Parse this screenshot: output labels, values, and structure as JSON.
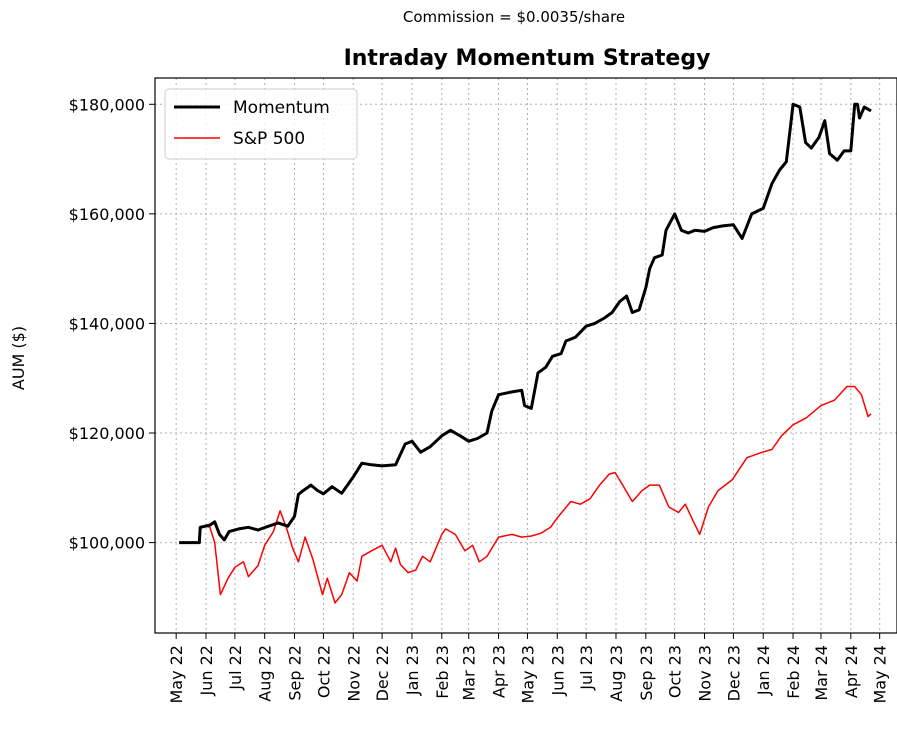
{
  "chart_data": {
    "type": "line",
    "supertitle": "Commission = $0.0035/share",
    "title": "Intraday Momentum Strategy",
    "xlabel": "",
    "ylabel": "AUM ($)",
    "y_ticks": [
      100000,
      120000,
      140000,
      160000,
      180000
    ],
    "y_tick_labels": [
      "$100,000",
      "$120,000",
      "$140,000",
      "$160,000",
      "$180,000"
    ],
    "ylim": [
      83500,
      184800
    ],
    "x_ticks": [
      "2022-05-01",
      "2022-06-01",
      "2022-07-01",
      "2022-08-01",
      "2022-09-01",
      "2022-10-01",
      "2022-11-01",
      "2022-12-01",
      "2023-01-01",
      "2023-02-01",
      "2023-03-01",
      "2023-04-01",
      "2023-05-01",
      "2023-06-01",
      "2023-07-01",
      "2023-08-01",
      "2023-09-01",
      "2023-10-01",
      "2023-11-01",
      "2023-12-01",
      "2024-01-01",
      "2024-02-01",
      "2024-03-01",
      "2024-04-01",
      "2024-05-01"
    ],
    "x_tick_labels": [
      "May 22",
      "Jun 22",
      "Jul 22",
      "Aug 22",
      "Sep 22",
      "Oct 22",
      "Nov 22",
      "Dec 22",
      "Jan 23",
      "Feb 23",
      "Mar 23",
      "Apr 23",
      "May 23",
      "Jun 23",
      "Jul 23",
      "Aug 23",
      "Sep 23",
      "Oct 23",
      "Nov 23",
      "Dec 23",
      "Jan 24",
      "Feb 24",
      "Mar 24",
      "Apr 24",
      "May 24"
    ],
    "xlim": [
      "2022-04-09",
      "2024-05-19"
    ],
    "grid": true,
    "legend_position": "top-left",
    "series": [
      {
        "name": "Momentum",
        "color": "#000000",
        "points": [
          [
            "2022-05-04",
            100000
          ],
          [
            "2022-05-25",
            100000
          ],
          [
            "2022-05-26",
            102800
          ],
          [
            "2022-06-05",
            103200
          ],
          [
            "2022-06-10",
            103800
          ],
          [
            "2022-06-15",
            101500
          ],
          [
            "2022-06-20",
            100500
          ],
          [
            "2022-06-25",
            102000
          ],
          [
            "2022-07-05",
            102500
          ],
          [
            "2022-07-15",
            102800
          ],
          [
            "2022-07-25",
            102300
          ],
          [
            "2022-08-05",
            103000
          ],
          [
            "2022-08-15",
            103600
          ],
          [
            "2022-08-25",
            103000
          ],
          [
            "2022-09-01",
            104800
          ],
          [
            "2022-09-05",
            108800
          ],
          [
            "2022-09-10",
            109500
          ],
          [
            "2022-09-18",
            110500
          ],
          [
            "2022-09-25",
            109500
          ],
          [
            "2022-10-01",
            108900
          ],
          [
            "2022-10-10",
            110200
          ],
          [
            "2022-10-20",
            109000
          ],
          [
            "2022-11-01",
            112000
          ],
          [
            "2022-11-10",
            114500
          ],
          [
            "2022-11-20",
            114200
          ],
          [
            "2022-12-01",
            114000
          ],
          [
            "2022-12-15",
            114200
          ],
          [
            "2022-12-25",
            118000
          ],
          [
            "2023-01-01",
            118500
          ],
          [
            "2023-01-10",
            116500
          ],
          [
            "2023-01-20",
            117500
          ],
          [
            "2023-02-01",
            119500
          ],
          [
            "2023-02-10",
            120500
          ],
          [
            "2023-02-20",
            119500
          ],
          [
            "2023-03-01",
            118500
          ],
          [
            "2023-03-10",
            119000
          ],
          [
            "2023-03-20",
            120000
          ],
          [
            "2023-03-25",
            124000
          ],
          [
            "2023-04-01",
            127000
          ],
          [
            "2023-04-15",
            127500
          ],
          [
            "2023-04-25",
            127800
          ],
          [
            "2023-04-28",
            125000
          ],
          [
            "2023-05-05",
            124500
          ],
          [
            "2023-05-12",
            131000
          ],
          [
            "2023-05-20",
            132000
          ],
          [
            "2023-05-27",
            134000
          ],
          [
            "2023-06-05",
            134500
          ],
          [
            "2023-06-10",
            136800
          ],
          [
            "2023-06-20",
            137500
          ],
          [
            "2023-07-01",
            139500
          ],
          [
            "2023-07-10",
            140000
          ],
          [
            "2023-07-20",
            141000
          ],
          [
            "2023-07-28",
            142000
          ],
          [
            "2023-08-05",
            144000
          ],
          [
            "2023-08-12",
            145000
          ],
          [
            "2023-08-18",
            142000
          ],
          [
            "2023-08-25",
            142500
          ],
          [
            "2023-09-01",
            146500
          ],
          [
            "2023-09-05",
            150000
          ],
          [
            "2023-09-10",
            152000
          ],
          [
            "2023-09-18",
            152500
          ],
          [
            "2023-09-22",
            157000
          ],
          [
            "2023-10-01",
            160000
          ],
          [
            "2023-10-08",
            157000
          ],
          [
            "2023-10-15",
            156500
          ],
          [
            "2023-10-22",
            157000
          ],
          [
            "2023-11-01",
            156800
          ],
          [
            "2023-11-10",
            157500
          ],
          [
            "2023-11-20",
            157800
          ],
          [
            "2023-12-01",
            158000
          ],
          [
            "2023-12-10",
            155500
          ],
          [
            "2023-12-20",
            160000
          ],
          [
            "2024-01-01",
            161000
          ],
          [
            "2024-01-10",
            165500
          ],
          [
            "2024-01-18",
            168000
          ],
          [
            "2024-01-25",
            169500
          ],
          [
            "2024-02-01",
            180000
          ],
          [
            "2024-02-08",
            179500
          ],
          [
            "2024-02-14",
            173000
          ],
          [
            "2024-02-20",
            172000
          ],
          [
            "2024-02-28",
            174000
          ],
          [
            "2024-03-05",
            177000
          ],
          [
            "2024-03-10",
            171000
          ],
          [
            "2024-03-18",
            169800
          ],
          [
            "2024-03-25",
            171500
          ],
          [
            "2024-04-01",
            171500
          ],
          [
            "2024-04-05",
            180000
          ],
          [
            "2024-04-08",
            180000
          ],
          [
            "2024-04-10",
            177500
          ],
          [
            "2024-04-15",
            179500
          ],
          [
            "2024-04-22",
            178800
          ]
        ]
      },
      {
        "name": "S&P 500",
        "color": "#ff0000",
        "points": [
          [
            "2022-05-25",
            102500
          ],
          [
            "2022-06-01",
            103000
          ],
          [
            "2022-06-05",
            102800
          ],
          [
            "2022-06-10",
            100000
          ],
          [
            "2022-06-16",
            90500
          ],
          [
            "2022-06-24",
            93500
          ],
          [
            "2022-07-01",
            95500
          ],
          [
            "2022-07-10",
            96500
          ],
          [
            "2022-07-15",
            93800
          ],
          [
            "2022-07-25",
            95800
          ],
          [
            "2022-08-01",
            99500
          ],
          [
            "2022-08-10",
            102000
          ],
          [
            "2022-08-17",
            105800
          ],
          [
            "2022-08-24",
            102500
          ],
          [
            "2022-08-30",
            99000
          ],
          [
            "2022-09-05",
            96500
          ],
          [
            "2022-09-12",
            101000
          ],
          [
            "2022-09-20",
            97000
          ],
          [
            "2022-09-30",
            90500
          ],
          [
            "2022-10-05",
            93500
          ],
          [
            "2022-10-13",
            89000
          ],
          [
            "2022-10-20",
            90500
          ],
          [
            "2022-10-28",
            94500
          ],
          [
            "2022-11-05",
            93000
          ],
          [
            "2022-11-10",
            97500
          ],
          [
            "2022-11-20",
            98500
          ],
          [
            "2022-12-01",
            99500
          ],
          [
            "2022-12-10",
            96500
          ],
          [
            "2022-12-15",
            99000
          ],
          [
            "2022-12-20",
            96000
          ],
          [
            "2022-12-28",
            94500
          ],
          [
            "2023-01-05",
            95000
          ],
          [
            "2023-01-12",
            97500
          ],
          [
            "2023-01-20",
            96500
          ],
          [
            "2023-02-01",
            101500
          ],
          [
            "2023-02-05",
            102500
          ],
          [
            "2023-02-15",
            101500
          ],
          [
            "2023-02-25",
            98500
          ],
          [
            "2023-03-05",
            99500
          ],
          [
            "2023-03-12",
            96500
          ],
          [
            "2023-03-20",
            97500
          ],
          [
            "2023-04-01",
            101000
          ],
          [
            "2023-04-15",
            101500
          ],
          [
            "2023-04-25",
            101000
          ],
          [
            "2023-05-05",
            101200
          ],
          [
            "2023-05-15",
            101700
          ],
          [
            "2023-05-25",
            102800
          ],
          [
            "2023-06-01",
            104500
          ],
          [
            "2023-06-15",
            107500
          ],
          [
            "2023-06-25",
            107000
          ],
          [
            "2023-07-05",
            108000
          ],
          [
            "2023-07-15",
            110500
          ],
          [
            "2023-07-25",
            112500
          ],
          [
            "2023-07-31",
            112800
          ],
          [
            "2023-08-08",
            110500
          ],
          [
            "2023-08-18",
            107500
          ],
          [
            "2023-08-28",
            109500
          ],
          [
            "2023-09-05",
            110500
          ],
          [
            "2023-09-15",
            110500
          ],
          [
            "2023-09-25",
            106500
          ],
          [
            "2023-10-05",
            105500
          ],
          [
            "2023-10-12",
            107000
          ],
          [
            "2023-10-20",
            104000
          ],
          [
            "2023-10-27",
            101500
          ],
          [
            "2023-11-05",
            106500
          ],
          [
            "2023-11-15",
            109500
          ],
          [
            "2023-11-30",
            111500
          ],
          [
            "2023-12-15",
            115500
          ],
          [
            "2023-12-31",
            116500
          ],
          [
            "2024-01-10",
            117000
          ],
          [
            "2024-01-20",
            119500
          ],
          [
            "2024-02-01",
            121500
          ],
          [
            "2024-02-15",
            122800
          ],
          [
            "2024-03-01",
            125000
          ],
          [
            "2024-03-15",
            126000
          ],
          [
            "2024-03-28",
            128500
          ],
          [
            "2024-04-05",
            128500
          ],
          [
            "2024-04-12",
            127000
          ],
          [
            "2024-04-19",
            123000
          ],
          [
            "2024-04-22",
            123500
          ]
        ]
      }
    ]
  }
}
